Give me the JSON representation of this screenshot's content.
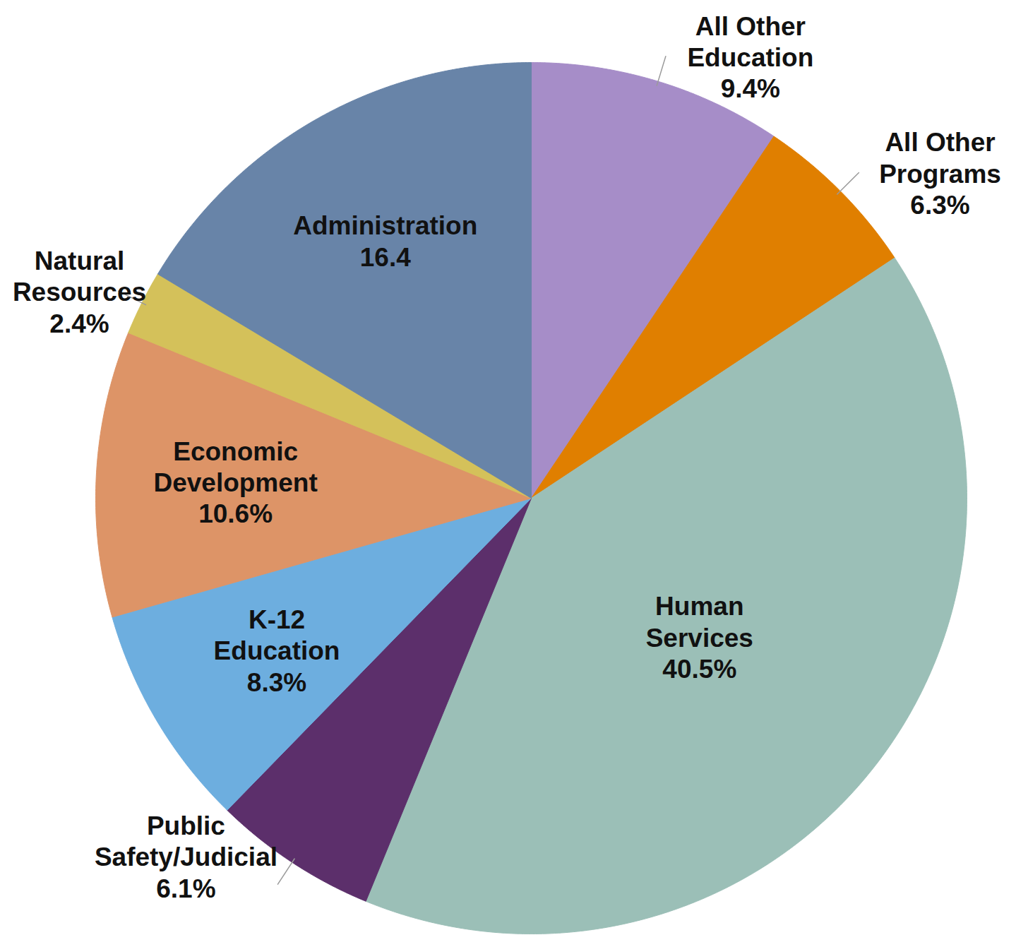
{
  "chart_data": {
    "type": "pie",
    "categories": [
      "All Other Education",
      "All Other Programs",
      "Human Services",
      "Public Safety/Judicial",
      "K-12 Education",
      "Economic Development",
      "Natural Resources",
      "Administration"
    ],
    "values": [
      9.4,
      6.3,
      40.5,
      6.1,
      8.3,
      10.6,
      2.4,
      16.4
    ],
    "value_labels": [
      "9.4%",
      "6.3%",
      "40.5%",
      "6.1%",
      "8.3%",
      "10.6%",
      "2.4%",
      "16.4"
    ],
    "colors": [
      "#a68dc8",
      "#e07f00",
      "#9bbfb7",
      "#5c2f6b",
      "#6daedf",
      "#dd9467",
      "#d4c15a",
      "#6884a8"
    ],
    "data_labels": true
  }
}
